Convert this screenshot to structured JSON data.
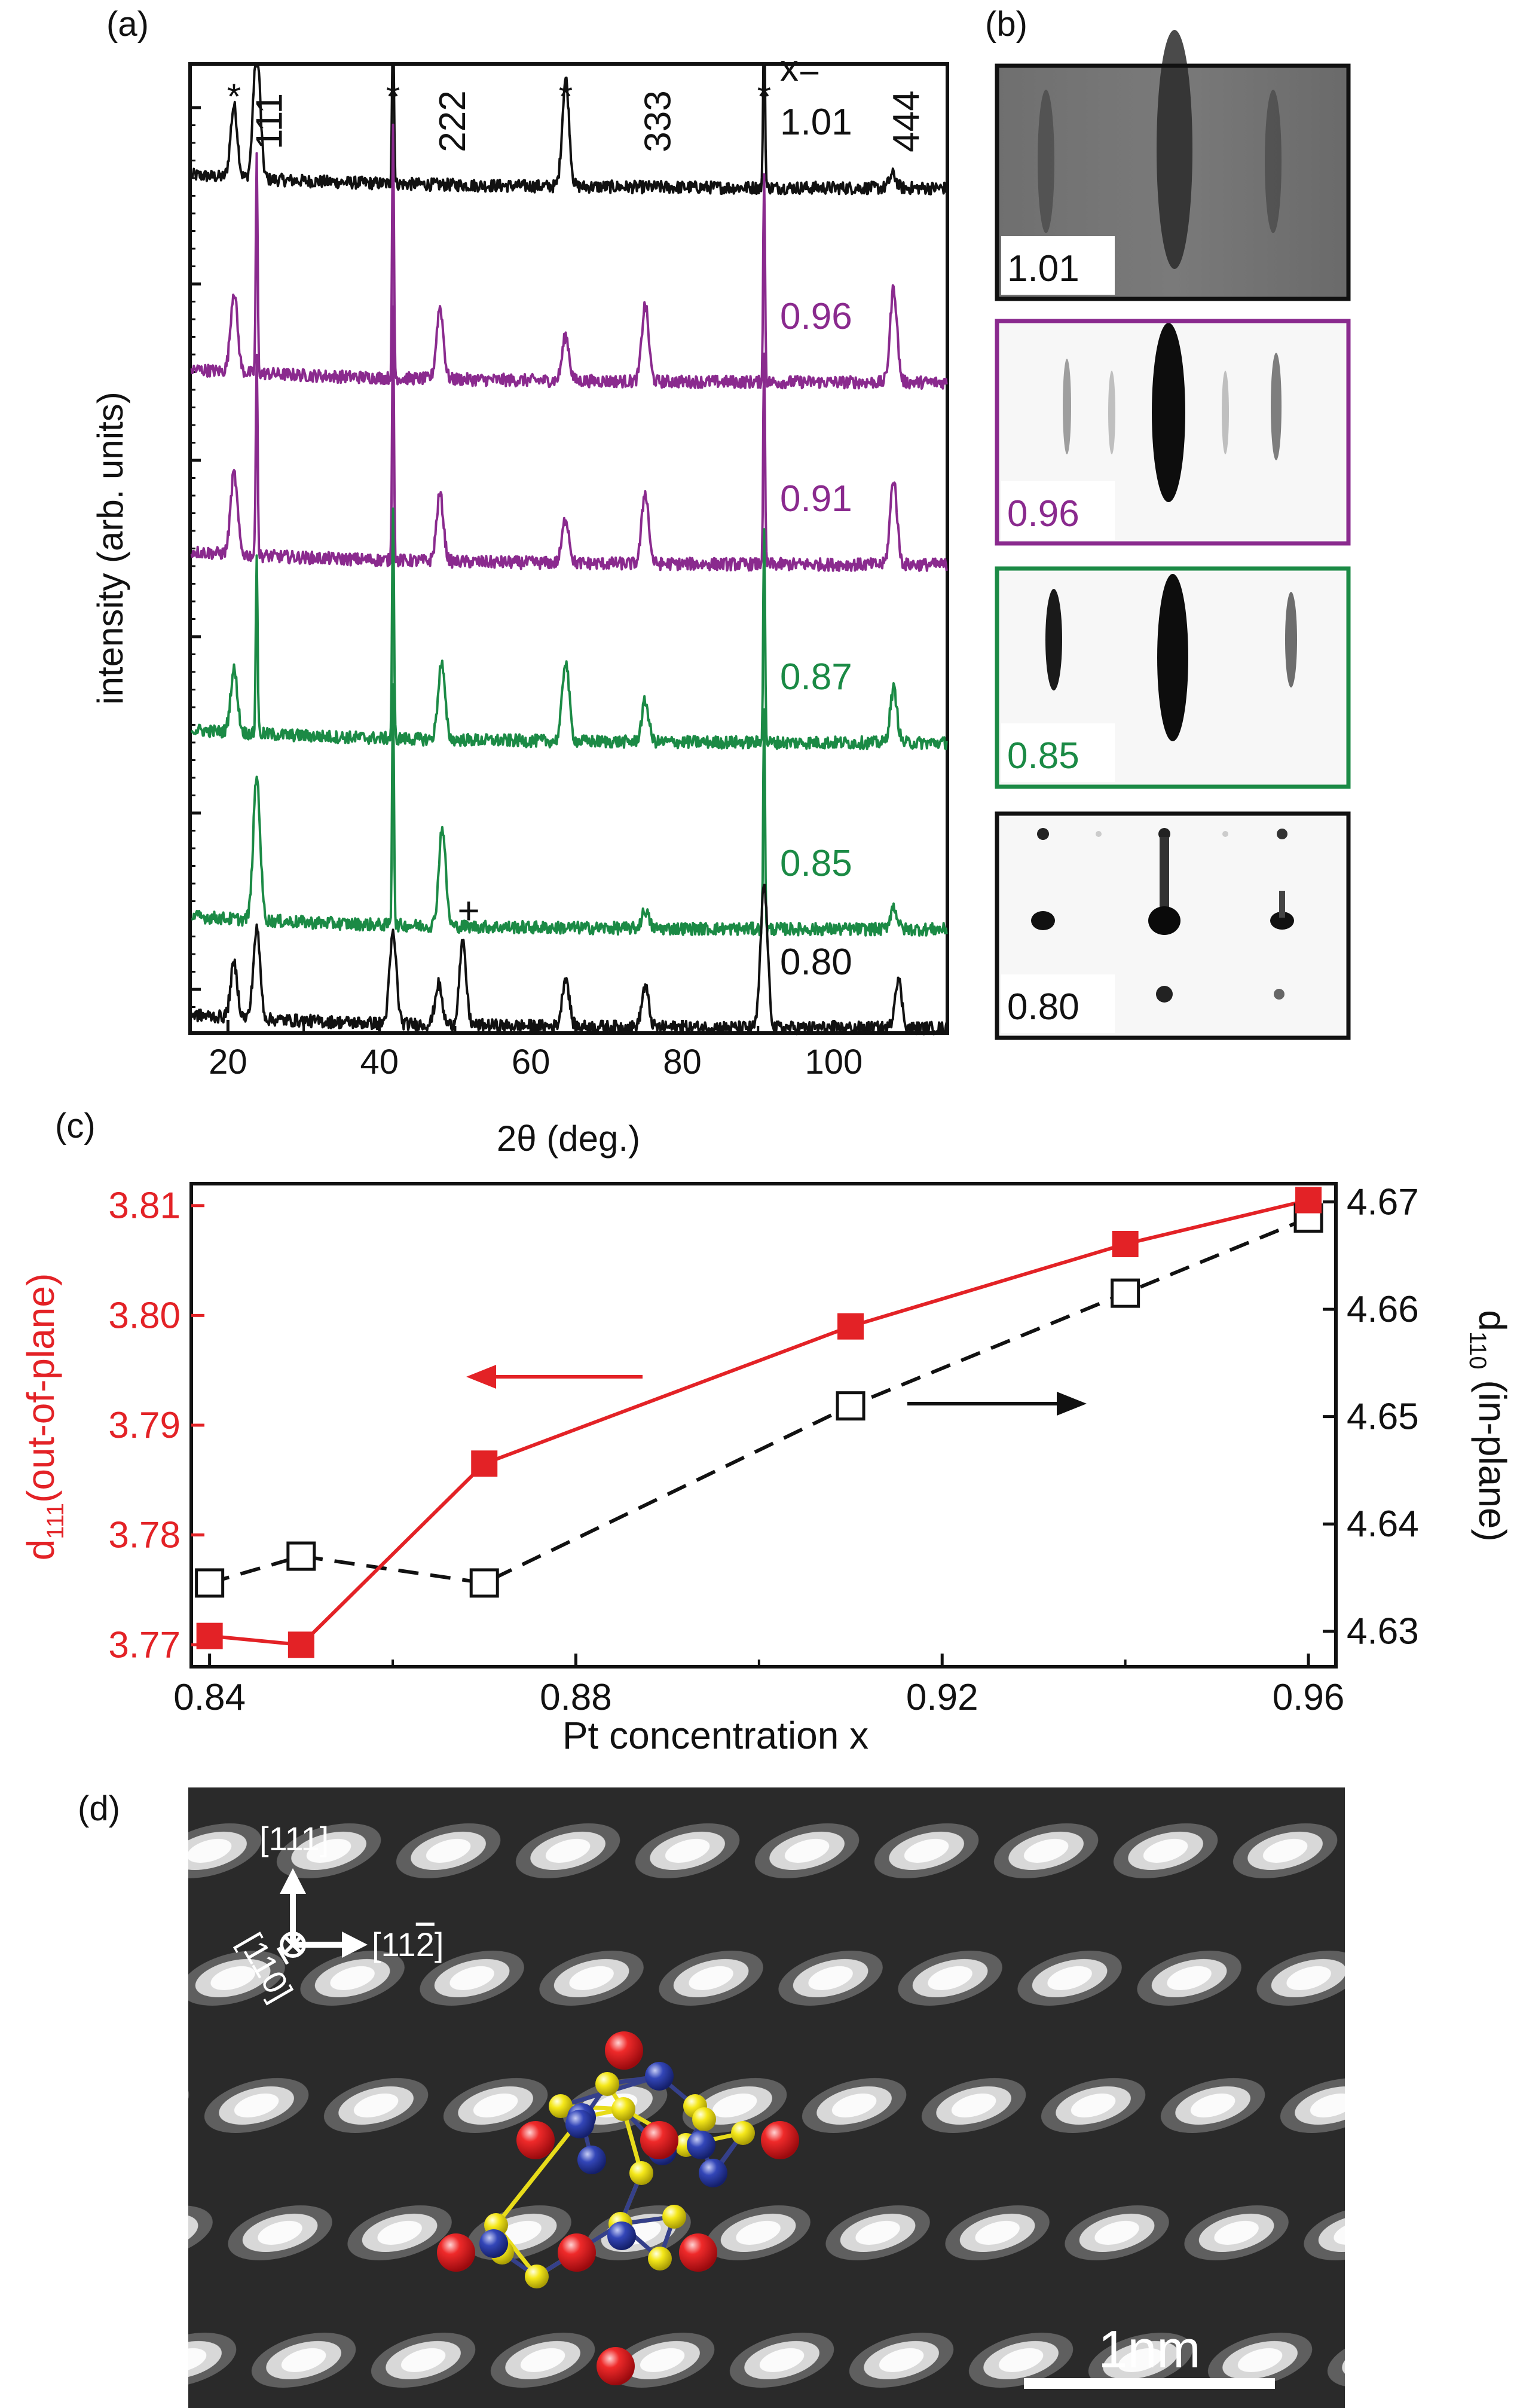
{
  "colors": {
    "black": "#111111",
    "purple": "#8a2a8e",
    "green": "#1b8a45",
    "red": "#e32226",
    "atom_red": "#e8121b",
    "atom_blue": "#1f3aa5",
    "atom_yellow": "#f2e313",
    "bond_yellow": "#e8dc1a",
    "bond_blue": "#35408a"
  },
  "panels": {
    "a": "(a)",
    "b": "(b)",
    "c": "(c)",
    "d": "(d)"
  },
  "chart_data": [
    {
      "panel": "a",
      "type": "line",
      "title": "",
      "xlabel": "2θ (deg.)",
      "ylabel": "intensity (arb. units)",
      "xlim": [
        15,
        115
      ],
      "xticks": [
        20,
        40,
        60,
        80,
        100
      ],
      "yscale": "log (stacked, offset)",
      "series": [
        {
          "name": "1.01",
          "label_prefix": "x=",
          "color": "black",
          "peaks": [
            {
              "x": 20.8,
              "h": 0.8
            },
            {
              "x": 23.8,
              "h": 1.5
            },
            {
              "x": 41.8,
              "h": 2.2
            },
            {
              "x": 64.6,
              "h": 1.2
            },
            {
              "x": 90.8,
              "h": 2.0
            },
            {
              "x": 107.8,
              "h": 0.15
            }
          ]
        },
        {
          "name": "0.96",
          "color": "purple",
          "peaks": [
            {
              "x": 20.8,
              "h": 0.9
            },
            {
              "x": 23.8,
              "h": 2.4
            },
            {
              "x": 41.8,
              "h": 2.8
            },
            {
              "x": 48.0,
              "h": 0.8
            },
            {
              "x": 64.6,
              "h": 0.5
            },
            {
              "x": 75.1,
              "h": 0.85
            },
            {
              "x": 90.8,
              "h": 2.3
            },
            {
              "x": 107.9,
              "h": 1.05
            }
          ]
        },
        {
          "name": "0.91",
          "color": "purple",
          "peaks": [
            {
              "x": 20.8,
              "h": 0.9
            },
            {
              "x": 23.8,
              "h": 2.3
            },
            {
              "x": 41.8,
              "h": 2.8
            },
            {
              "x": 48.0,
              "h": 0.75
            },
            {
              "x": 64.6,
              "h": 0.5
            },
            {
              "x": 75.1,
              "h": 0.8
            },
            {
              "x": 90.8,
              "h": 2.3
            },
            {
              "x": 107.9,
              "h": 0.95
            }
          ]
        },
        {
          "name": "0.87",
          "color": "green",
          "peaks": [
            {
              "x": 20.8,
              "h": 0.7
            },
            {
              "x": 23.8,
              "h": 2.0
            },
            {
              "x": 41.8,
              "h": 2.6
            },
            {
              "x": 48.2,
              "h": 0.85
            },
            {
              "x": 64.6,
              "h": 0.9
            },
            {
              "x": 75.1,
              "h": 0.45
            },
            {
              "x": 90.8,
              "h": 2.4
            },
            {
              "x": 107.9,
              "h": 0.6
            }
          ]
        },
        {
          "name": "0.85",
          "color": "green",
          "peaks": [
            {
              "x": 23.8,
              "h": 1.6
            },
            {
              "x": 41.8,
              "h": 2.7
            },
            {
              "x": 48.3,
              "h": 1.1
            },
            {
              "x": 75.1,
              "h": 0.2
            },
            {
              "x": 90.8,
              "h": 2.4
            },
            {
              "x": 107.9,
              "h": 0.25
            }
          ]
        },
        {
          "name": "0.80",
          "color": "black",
          "peaks": [
            {
              "x": 20.8,
              "h": 0.6
            },
            {
              "x": 23.8,
              "h": 1.0
            },
            {
              "x": 41.8,
              "h": 1.0
            },
            {
              "x": 47.8,
              "h": 0.45
            },
            {
              "x": 51.0,
              "h": 0.9
            },
            {
              "x": 64.6,
              "h": 0.55
            },
            {
              "x": 75.1,
              "h": 0.45
            },
            {
              "x": 90.8,
              "h": 1.6
            },
            {
              "x": 108.5,
              "h": 0.55
            }
          ]
        }
      ],
      "annotations": {
        "substrate_marker": "*",
        "substrate_x": [
          20.8,
          41.8,
          64.6,
          90.8
        ],
        "impurity_marker": "+",
        "impurity_x": 51.0,
        "reflections": [
          {
            "label": "111",
            "x": 23.8
          },
          {
            "label": "222",
            "x": 48.0
          },
          {
            "label": "333",
            "x": 75.1
          },
          {
            "label": "444",
            "x": 107.9
          }
        ]
      }
    },
    {
      "panel": "c",
      "type": "line",
      "title": "",
      "xlabel": "Pt concentration x",
      "xlim": [
        0.838,
        0.963
      ],
      "xticks": [
        "0.84",
        "0.88",
        "0.92",
        "0.96"
      ],
      "series": [
        {
          "name": "d111 (out-of-plane)",
          "axis": "left",
          "ylabel_main": "d",
          "ylabel_sub": "111",
          "ylabel_rest": "(out-of-plane)",
          "ylim": [
            3.768,
            3.812
          ],
          "yticks": [
            "3.77",
            "3.78",
            "3.79",
            "3.80",
            "3.81"
          ],
          "marker": "filled-square",
          "line": "solid",
          "color": "red",
          "x": [
            0.84,
            0.85,
            0.87,
            0.91,
            0.94,
            0.96
          ],
          "y": [
            3.7708,
            3.77,
            3.7865,
            3.799,
            3.8065,
            3.8105
          ]
        },
        {
          "name": "d110 (in-plane)",
          "axis": "right",
          "ylabel_main": "d",
          "ylabel_sub": "110",
          "ylabel_rest": " (in-plane)",
          "ylim": [
            4.6267,
            4.6717
          ],
          "yticks": [
            "4.63",
            "4.64",
            "4.65",
            "4.66",
            "4.67"
          ],
          "marker": "open-square",
          "line": "dashed",
          "color": "black",
          "x": [
            0.84,
            0.85,
            0.87,
            0.91,
            0.94,
            0.96
          ],
          "y": [
            4.6345,
            4.637,
            4.6345,
            4.651,
            4.6615,
            4.6685
          ]
        }
      ]
    }
  ],
  "rheed": [
    {
      "label": "1.01",
      "color": "black"
    },
    {
      "label": "0.96",
      "color": "purple"
    },
    {
      "label": "0.85",
      "color": "green"
    },
    {
      "label": "0.80",
      "color": "black"
    }
  ],
  "stem": {
    "direction_up": "[111]",
    "direction_right": "[11",
    "direction_right_bar": "2",
    "direction_right_close": "]",
    "direction_in": "[1",
    "direction_in_bar": "1",
    "direction_in_close": "0]",
    "scale_bar_label": "1nm"
  }
}
